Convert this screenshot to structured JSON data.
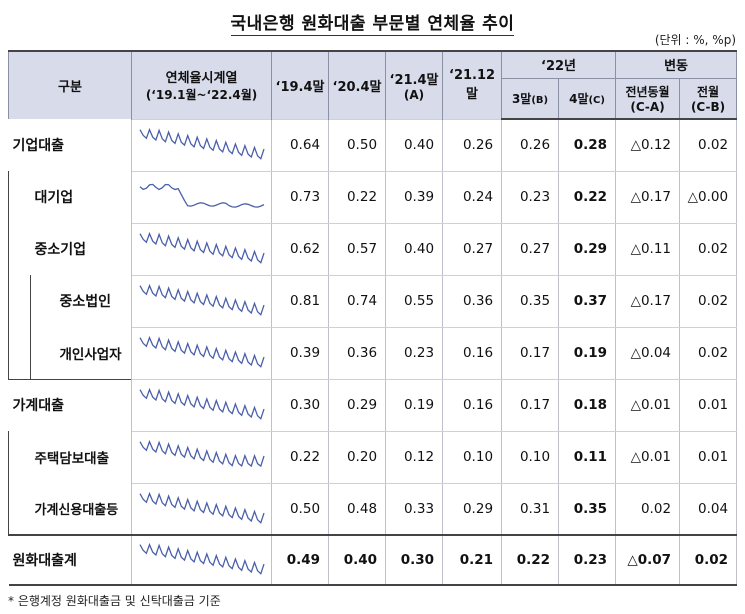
{
  "title": "국내은행 원화대출 부문별 연체율 추이",
  "unit": "(단위 : %, %p)",
  "headers": {
    "category": "구분",
    "timeseries_line1": "연체율시계열",
    "timeseries_line2": "(‘19.1월~‘22.4월)",
    "col_19_4": "‘19.4말",
    "col_20_4": "‘20.4말",
    "col_21_4_line1": "‘21.4말",
    "col_21_4_line2": "(A)",
    "col_21_12": "‘21.12말",
    "group_22": "‘22년",
    "col_22_3": "3말",
    "col_22_3_tag": "(B)",
    "col_22_4": "4말",
    "col_22_4_tag": "(C)",
    "group_change": "변동",
    "col_yoy_line1": "전년동월",
    "col_yoy_line2": "(C-A)",
    "col_mom_line1": "전월",
    "col_mom_line2": "(C-B)"
  },
  "rows": [
    {
      "label": "기업대출",
      "v19": "0.64",
      "v20": "0.50",
      "v21": "0.40",
      "v2112": "0.26",
      "v223": "0.26",
      "v224": "0.28",
      "yoy": "△0.12",
      "mom": "0.02"
    },
    {
      "label": "대기업",
      "v19": "0.73",
      "v20": "0.22",
      "v21": "0.39",
      "v2112": "0.24",
      "v223": "0.23",
      "v224": "0.22",
      "yoy": "△0.17",
      "mom": "△0.00"
    },
    {
      "label": "중소기업",
      "v19": "0.62",
      "v20": "0.57",
      "v21": "0.40",
      "v2112": "0.27",
      "v223": "0.27",
      "v224": "0.29",
      "yoy": "△0.11",
      "mom": "0.02"
    },
    {
      "label": "중소법인",
      "v19": "0.81",
      "v20": "0.74",
      "v21": "0.55",
      "v2112": "0.36",
      "v223": "0.35",
      "v224": "0.37",
      "yoy": "△0.17",
      "mom": "0.02"
    },
    {
      "label": "개인사업자",
      "v19": "0.39",
      "v20": "0.36",
      "v21": "0.23",
      "v2112": "0.16",
      "v223": "0.17",
      "v224": "0.19",
      "yoy": "△0.04",
      "mom": "0.02"
    },
    {
      "label": "가계대출",
      "v19": "0.30",
      "v20": "0.29",
      "v21": "0.19",
      "v2112": "0.16",
      "v223": "0.17",
      "v224": "0.18",
      "yoy": "△0.01",
      "mom": "0.01"
    },
    {
      "label": "주택담보대출",
      "v19": "0.22",
      "v20": "0.20",
      "v21": "0.12",
      "v2112": "0.10",
      "v223": "0.10",
      "v224": "0.11",
      "yoy": "△0.01",
      "mom": "0.01"
    },
    {
      "label": "가계신용대출등",
      "v19": "0.50",
      "v20": "0.48",
      "v21": "0.33",
      "v2112": "0.29",
      "v223": "0.31",
      "v224": "0.35",
      "yoy": "0.02",
      "mom": "0.04"
    },
    {
      "label": "원화대출계",
      "v19": "0.49",
      "v20": "0.40",
      "v21": "0.30",
      "v2112": "0.21",
      "v223": "0.22",
      "v224": "0.23",
      "yoy": "△0.07",
      "mom": "0.02"
    }
  ],
  "sparkline_style": {
    "color": "#4a5fa8",
    "pattern": [
      "sawtooth-decline",
      "drop-flat",
      "sawtooth-decline",
      "sawtooth-decline",
      "sawtooth-decline",
      "sawtooth-decline",
      "sawtooth-decline-flat",
      "sawtooth-decline",
      "sawtooth-decline"
    ]
  },
  "footnote": "* 은행계정 원화대출금 및 신탁대출금 기준"
}
